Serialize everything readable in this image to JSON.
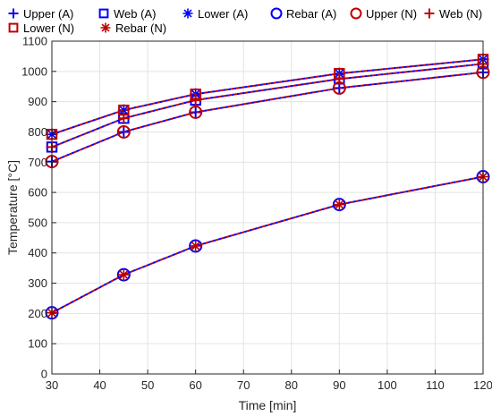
{
  "chart_data": {
    "type": "line",
    "xlabel": "Time [min]",
    "ylabel": "Temperature [°C]",
    "xlim": [
      30,
      120
    ],
    "ylim": [
      0,
      1100
    ],
    "xticks": [
      30,
      40,
      50,
      60,
      70,
      80,
      90,
      100,
      110,
      120
    ],
    "yticks": [
      0,
      100,
      200,
      300,
      400,
      500,
      600,
      700,
      800,
      900,
      1000,
      1100
    ],
    "grid": true,
    "legend_position": "top",
    "x": [
      30,
      45,
      60,
      90,
      120
    ],
    "series": [
      {
        "name": "Upper (A)",
        "color": "#0000ff",
        "marker": "plus",
        "values": [
          702,
          800,
          865,
          945,
          997
        ]
      },
      {
        "name": "Web (A)",
        "color": "#0000ff",
        "marker": "square",
        "values": [
          750,
          845,
          905,
          975,
          1025
        ]
      },
      {
        "name": "Lower (A)",
        "color": "#0000ff",
        "marker": "asterisk",
        "values": [
          792,
          872,
          925,
          993,
          1040
        ]
      },
      {
        "name": "Rebar (A)",
        "color": "#0000ff",
        "marker": "circle",
        "values": [
          202,
          328,
          423,
          560,
          652
        ]
      },
      {
        "name": "Upper (N)",
        "color": "#c00000",
        "marker": "circle",
        "values": [
          702,
          800,
          865,
          945,
          997
        ]
      },
      {
        "name": "Web (N)",
        "color": "#c00000",
        "marker": "plus",
        "values": [
          750,
          845,
          905,
          975,
          1025
        ]
      },
      {
        "name": "Lower (N)",
        "color": "#c00000",
        "marker": "square",
        "values": [
          792,
          872,
          925,
          993,
          1040
        ]
      },
      {
        "name": "Rebar (N)",
        "color": "#c00000",
        "marker": "asterisk",
        "values": [
          202,
          328,
          423,
          560,
          652
        ]
      }
    ]
  }
}
